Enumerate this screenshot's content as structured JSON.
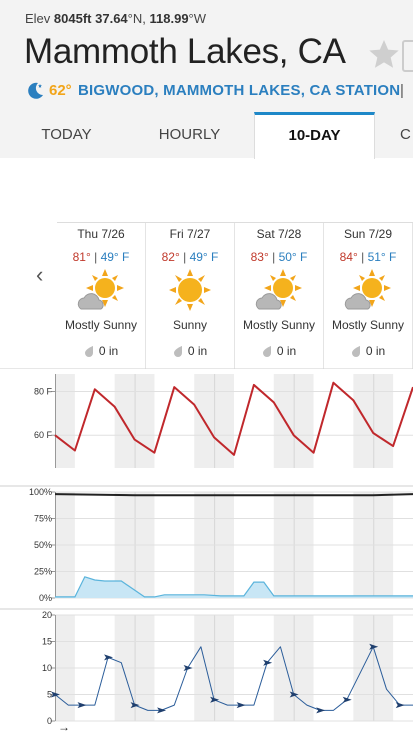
{
  "header": {
    "elev_label": "Elev",
    "elev_value": "8045ft",
    "lat": "37.64",
    "lat_unit": "°N,",
    "lon": "118.99",
    "lon_unit": "°W",
    "city": "Mammoth Lakes, CA",
    "current_temp": "62°",
    "station": "BIGWOOD, MAMMOTH LAKES, CA STATION",
    "separator": "|"
  },
  "tabs": [
    {
      "label": "TODAY"
    },
    {
      "label": "HOURLY"
    },
    {
      "label": "10-DAY",
      "active": true
    },
    {
      "label": "C"
    }
  ],
  "nav": {
    "prev": "‹"
  },
  "days": [
    {
      "label": "Thu 7/26",
      "hi": "81°",
      "lo": "49° F",
      "cond": "Mostly Sunny",
      "precip": "0 in",
      "icon": "mostly-sunny-icon"
    },
    {
      "label": "Fri 7/27",
      "hi": "82°",
      "lo": "49° F",
      "cond": "Sunny",
      "precip": "0 in",
      "icon": "sunny-icon"
    },
    {
      "label": "Sat 7/28",
      "hi": "83°",
      "lo": "50° F",
      "cond": "Mostly Sunny",
      "precip": "0 in",
      "icon": "mostly-sunny-icon"
    },
    {
      "label": "Sun 7/29",
      "hi": "84°",
      "lo": "51° F",
      "cond": "Mostly Sunny",
      "precip": "0 in",
      "icon": "mostly-sunny-icon"
    }
  ],
  "chart_data": [
    {
      "type": "line",
      "ylim": [
        45,
        88
      ],
      "ytick_labels": [
        "80 F",
        "60 F"
      ],
      "yticks": [
        80,
        60
      ],
      "series": [
        {
          "color": "#c0282c",
          "x": [
            0,
            6,
            12,
            18,
            24,
            30,
            36,
            42,
            48,
            54,
            60,
            66,
            72,
            78,
            84,
            90,
            96,
            102,
            108
          ],
          "y": [
            60,
            53,
            81,
            73,
            58,
            52,
            82,
            74,
            59,
            51,
            83,
            75,
            60,
            52,
            84,
            76,
            61,
            55,
            82
          ]
        }
      ]
    },
    {
      "type": "line",
      "ylim": [
        0,
        100
      ],
      "ytick_labels": [
        "100%",
        "75%",
        "50%",
        "25%",
        "0%"
      ],
      "yticks": [
        100,
        75,
        50,
        25,
        0
      ],
      "series": [
        {
          "color": "#222222",
          "x": [
            0,
            24,
            48,
            72,
            96,
            108
          ],
          "y": [
            98,
            97,
            97,
            97,
            97,
            98
          ]
        },
        {
          "color": "#5ab4dc",
          "fill": "#c8e6f5",
          "x": [
            0,
            6,
            9,
            12,
            15,
            20,
            27,
            30,
            33,
            40,
            45,
            50,
            57,
            60,
            63,
            66,
            72,
            84,
            100,
            108
          ],
          "y": [
            1,
            1,
            20,
            17,
            16,
            16,
            1,
            1,
            3,
            3,
            3,
            2,
            2,
            15,
            15,
            2,
            2,
            2,
            2,
            2
          ]
        }
      ]
    },
    {
      "type": "line",
      "ylim": [
        0,
        20
      ],
      "ytick_labels": [
        "20",
        "15",
        "10",
        "5",
        "0"
      ],
      "yticks": [
        20,
        15,
        10,
        5,
        0
      ],
      "series": [
        {
          "color": "#2b5d9a",
          "x": [
            0,
            4,
            8,
            12,
            16,
            20,
            24,
            28,
            32,
            36,
            40,
            44,
            48,
            52,
            56,
            60,
            64,
            68,
            72,
            76,
            80,
            84,
            88,
            92,
            96,
            100,
            104,
            108
          ],
          "y": [
            5,
            3,
            3,
            3,
            12,
            11,
            3,
            2,
            2,
            3,
            10,
            14,
            4,
            3,
            3,
            3,
            11,
            14,
            5,
            3,
            2,
            2,
            4,
            9,
            14,
            6,
            3,
            3
          ]
        }
      ]
    }
  ],
  "footer": {
    "arrow": "→"
  }
}
